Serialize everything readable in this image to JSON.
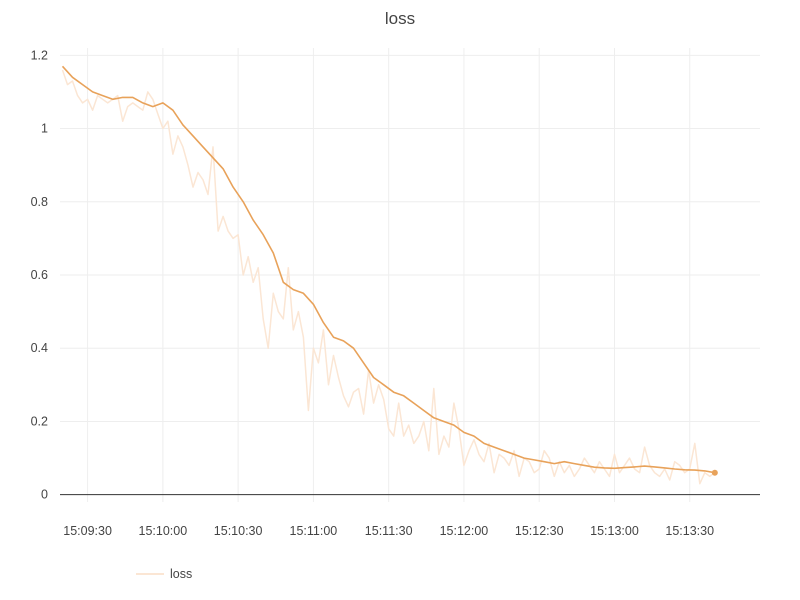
{
  "colors": {
    "line": "#e8a25a",
    "raw": "#fbe6d4",
    "grid": "#eeeeee",
    "axis": "#333333",
    "text": "#444444"
  },
  "chart_data": {
    "type": "line",
    "title": "loss",
    "xlabel": "",
    "ylabel": "",
    "x_ticks": [
      "15:09:30",
      "15:10:00",
      "15:10:30",
      "15:11:00",
      "15:11:30",
      "15:12:00",
      "15:12:30",
      "15:13:00",
      "15:13:30"
    ],
    "y_ticks": [
      "0",
      "0.2",
      "0.4",
      "0.6",
      "0.8",
      "1",
      "1.2"
    ],
    "x_range": [
      "15:09:19",
      "15:13:58"
    ],
    "ylim": [
      -0.02,
      1.22
    ],
    "grid": true,
    "legend": {
      "position": "bottom-left",
      "entries": [
        "loss"
      ]
    },
    "series": [
      {
        "name": "loss",
        "style": "raw",
        "x": [
          "15:09:20",
          "15:09:22",
          "15:09:24",
          "15:09:26",
          "15:09:28",
          "15:09:30",
          "15:09:32",
          "15:09:34",
          "15:09:36",
          "15:09:38",
          "15:09:40",
          "15:09:42",
          "15:09:44",
          "15:09:46",
          "15:09:48",
          "15:09:50",
          "15:09:52",
          "15:09:54",
          "15:09:56",
          "15:09:58",
          "15:10:00",
          "15:10:02",
          "15:10:04",
          "15:10:06",
          "15:10:08",
          "15:10:10",
          "15:10:12",
          "15:10:14",
          "15:10:16",
          "15:10:18",
          "15:10:20",
          "15:10:22",
          "15:10:24",
          "15:10:26",
          "15:10:28",
          "15:10:30",
          "15:10:32",
          "15:10:34",
          "15:10:36",
          "15:10:38",
          "15:10:40",
          "15:10:42",
          "15:10:44",
          "15:10:46",
          "15:10:48",
          "15:10:50",
          "15:10:52",
          "15:10:54",
          "15:10:56",
          "15:10:58",
          "15:11:00",
          "15:11:02",
          "15:11:04",
          "15:11:06",
          "15:11:08",
          "15:11:10",
          "15:11:12",
          "15:11:14",
          "15:11:16",
          "15:11:18",
          "15:11:20",
          "15:11:22",
          "15:11:24",
          "15:11:26",
          "15:11:28",
          "15:11:30",
          "15:11:32",
          "15:11:34",
          "15:11:36",
          "15:11:38",
          "15:11:40",
          "15:11:42",
          "15:11:44",
          "15:11:46",
          "15:11:48",
          "15:11:50",
          "15:11:52",
          "15:11:54",
          "15:11:56",
          "15:11:58",
          "15:12:00",
          "15:12:02",
          "15:12:04",
          "15:12:06",
          "15:12:08",
          "15:12:10",
          "15:12:12",
          "15:12:14",
          "15:12:16",
          "15:12:18",
          "15:12:20",
          "15:12:22",
          "15:12:24",
          "15:12:26",
          "15:12:28",
          "15:12:30",
          "15:12:32",
          "15:12:34",
          "15:12:36",
          "15:12:38",
          "15:12:40",
          "15:12:42",
          "15:12:44",
          "15:12:46",
          "15:12:48",
          "15:12:50",
          "15:12:52",
          "15:12:54",
          "15:12:56",
          "15:12:58",
          "15:13:00",
          "15:13:02",
          "15:13:04",
          "15:13:06",
          "15:13:08",
          "15:13:10",
          "15:13:12",
          "15:13:14",
          "15:13:16",
          "15:13:18",
          "15:13:20",
          "15:13:22",
          "15:13:24",
          "15:13:26",
          "15:13:28",
          "15:13:30",
          "15:13:32",
          "15:13:34",
          "15:13:36",
          "15:13:38",
          "15:13:40"
        ],
        "values": [
          1.16,
          1.12,
          1.13,
          1.09,
          1.07,
          1.08,
          1.05,
          1.09,
          1.08,
          1.07,
          1.08,
          1.09,
          1.02,
          1.06,
          1.07,
          1.06,
          1.05,
          1.1,
          1.08,
          1.04,
          1.0,
          1.02,
          0.93,
          0.98,
          0.95,
          0.9,
          0.84,
          0.88,
          0.86,
          0.82,
          0.95,
          0.72,
          0.76,
          0.72,
          0.7,
          0.71,
          0.6,
          0.65,
          0.58,
          0.62,
          0.48,
          0.4,
          0.55,
          0.5,
          0.48,
          0.62,
          0.45,
          0.5,
          0.43,
          0.23,
          0.4,
          0.36,
          0.45,
          0.3,
          0.38,
          0.32,
          0.27,
          0.24,
          0.28,
          0.29,
          0.22,
          0.34,
          0.25,
          0.3,
          0.26,
          0.18,
          0.16,
          0.25,
          0.16,
          0.19,
          0.14,
          0.16,
          0.2,
          0.12,
          0.29,
          0.11,
          0.16,
          0.13,
          0.25,
          0.18,
          0.08,
          0.12,
          0.15,
          0.11,
          0.09,
          0.14,
          0.06,
          0.11,
          0.1,
          0.08,
          0.12,
          0.05,
          0.1,
          0.09,
          0.06,
          0.07,
          0.12,
          0.1,
          0.05,
          0.09,
          0.06,
          0.08,
          0.05,
          0.07,
          0.1,
          0.08,
          0.06,
          0.09,
          0.07,
          0.05,
          0.11,
          0.06,
          0.08,
          0.1,
          0.07,
          0.06,
          0.13,
          0.08,
          0.06,
          0.05,
          0.07,
          0.04,
          0.09,
          0.08,
          0.06,
          0.07,
          0.14,
          0.03,
          0.06,
          0.05,
          0.06
        ]
      },
      {
        "name": "loss",
        "style": "smoothed",
        "x": [
          "15:09:20",
          "15:09:24",
          "15:09:28",
          "15:09:32",
          "15:09:36",
          "15:09:40",
          "15:09:44",
          "15:09:48",
          "15:09:52",
          "15:09:56",
          "15:10:00",
          "15:10:04",
          "15:10:08",
          "15:10:12",
          "15:10:16",
          "15:10:20",
          "15:10:24",
          "15:10:28",
          "15:10:32",
          "15:10:36",
          "15:10:40",
          "15:10:44",
          "15:10:48",
          "15:10:52",
          "15:10:56",
          "15:11:00",
          "15:11:04",
          "15:11:08",
          "15:11:12",
          "15:11:16",
          "15:11:20",
          "15:11:24",
          "15:11:28",
          "15:11:32",
          "15:11:36",
          "15:11:40",
          "15:11:44",
          "15:11:48",
          "15:11:52",
          "15:11:56",
          "15:12:00",
          "15:12:04",
          "15:12:08",
          "15:12:12",
          "15:12:16",
          "15:12:20",
          "15:12:24",
          "15:12:28",
          "15:12:32",
          "15:12:36",
          "15:12:40",
          "15:12:44",
          "15:12:48",
          "15:12:52",
          "15:12:56",
          "15:13:00",
          "15:13:04",
          "15:13:08",
          "15:13:12",
          "15:13:16",
          "15:13:20",
          "15:13:24",
          "15:13:28",
          "15:13:32",
          "15:13:36",
          "15:13:40"
        ],
        "values": [
          1.17,
          1.14,
          1.12,
          1.1,
          1.09,
          1.08,
          1.085,
          1.085,
          1.07,
          1.06,
          1.07,
          1.05,
          1.01,
          0.98,
          0.95,
          0.92,
          0.89,
          0.84,
          0.8,
          0.75,
          0.71,
          0.66,
          0.58,
          0.56,
          0.55,
          0.52,
          0.47,
          0.43,
          0.42,
          0.4,
          0.36,
          0.32,
          0.3,
          0.28,
          0.27,
          0.25,
          0.23,
          0.21,
          0.2,
          0.19,
          0.17,
          0.16,
          0.14,
          0.13,
          0.12,
          0.11,
          0.1,
          0.095,
          0.09,
          0.085,
          0.09,
          0.085,
          0.08,
          0.075,
          0.073,
          0.072,
          0.074,
          0.076,
          0.078,
          0.076,
          0.073,
          0.07,
          0.068,
          0.067,
          0.065,
          0.06
        ]
      }
    ]
  }
}
